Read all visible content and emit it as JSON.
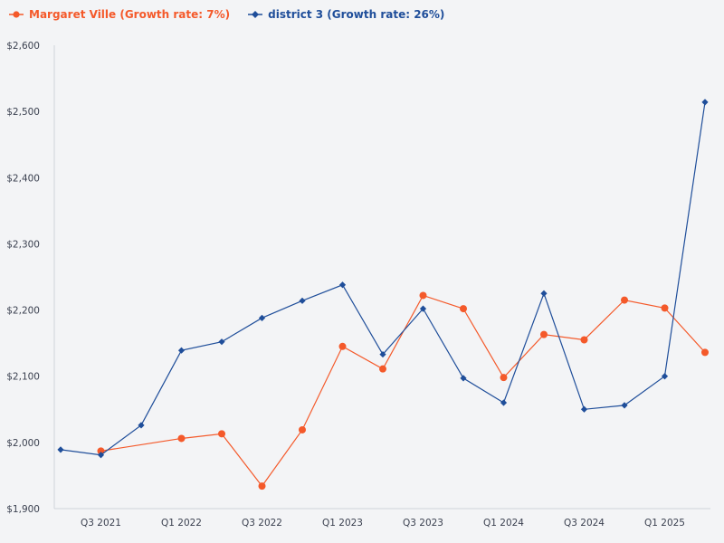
{
  "chart_data": {
    "type": "line",
    "title": "",
    "xlabel": "",
    "ylabel": "",
    "ylim": [
      1900,
      2600
    ],
    "yticks": [
      "$1,900",
      "$2,000",
      "$2,100",
      "$2,200",
      "$2,300",
      "$2,400",
      "$2,500",
      "$2,600"
    ],
    "ytick_values": [
      1900,
      2000,
      2100,
      2200,
      2300,
      2400,
      2500,
      2600
    ],
    "categories": [
      "Q2 2021",
      "Q3 2021",
      "Q4 2021",
      "Q1 2022",
      "Q2 2022",
      "Q3 2022",
      "Q4 2022",
      "Q1 2023",
      "Q2 2023",
      "Q3 2023",
      "Q4 2023",
      "Q1 2024",
      "Q2 2024",
      "Q3 2024",
      "Q4 2024",
      "Q1 2025",
      "Q2 2025"
    ],
    "xtick_labels": [
      "Q3 2021",
      "Q1 2022",
      "Q3 2022",
      "Q1 2023",
      "Q3 2023",
      "Q1 2024",
      "Q3 2024",
      "Q1 2025"
    ],
    "xtick_index": [
      1,
      3,
      5,
      7,
      9,
      11,
      13,
      15
    ],
    "legend_position": "top-left",
    "series": [
      {
        "name": "Margaret Ville (Growth rate: 7%)",
        "color": "#f4592a",
        "marker": "circle",
        "values": [
          null,
          1987,
          null,
          2006,
          2013,
          1934,
          2019,
          2145,
          2111,
          2222,
          2202,
          2098,
          2163,
          2155,
          2215,
          2203,
          2136
        ]
      },
      {
        "name": "district 3 (Growth rate: 26%)",
        "color": "#1f4e9a",
        "marker": "diamond",
        "values": [
          1989,
          1981,
          2026,
          2139,
          2152,
          2188,
          2214,
          2238,
          2133,
          2202,
          2097,
          2060,
          2225,
          2050,
          2056,
          2100,
          2514
        ]
      }
    ]
  }
}
